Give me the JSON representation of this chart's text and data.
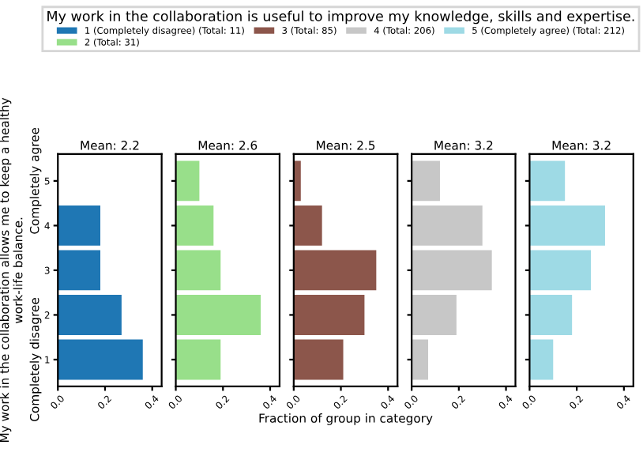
{
  "chart_data": [
    {
      "type": "bar",
      "orientation": "horizontal",
      "title": "Mean: 2.2",
      "ylabel": "My work in the collaboration allows me to keep a healthy work-life balance.",
      "legend_title": "My work in the collaboration is useful to improve my knowledge, skills and expertise.",
      "legend": "top",
      "annotations": [
        "Completely agree",
        "Completely disagree"
      ],
      "categories": [
        "5",
        "4",
        "3",
        "2",
        "1"
      ],
      "xlim": [
        0,
        0.44
      ],
      "xticks": [
        {
          "value": 0,
          "label": "0.0"
        },
        {
          "value": 0.2,
          "label": "0.2"
        },
        {
          "value": 0.4,
          "label": "0.4"
        }
      ],
      "series": [
        {
          "name": "1 (Completely disagree) (Total: 11)",
          "color": "#1f77b4",
          "values": [
            0,
            0.18,
            0.18,
            0.27,
            0.36
          ]
        }
      ]
    },
    {
      "type": "bar",
      "orientation": "horizontal",
      "title": "Mean: 2.6",
      "legend": "top",
      "tick_labels": "x",
      "categories": [
        "5",
        "4",
        "3",
        "2",
        "1"
      ],
      "xlim": [
        0,
        0.44
      ],
      "xticks": [
        {
          "value": 0,
          "label": "0.0"
        },
        {
          "value": 0.2,
          "label": "0.2"
        },
        {
          "value": 0.4,
          "label": "0.4"
        }
      ],
      "series": [
        {
          "name": "2 (Total: 31)",
          "color": "#98df8a",
          "values": [
            0.1,
            0.16,
            0.19,
            0.36,
            0.19
          ]
        }
      ]
    },
    {
      "type": "bar",
      "orientation": "horizontal",
      "title": "Mean: 2.5",
      "xlabel": "Fraction of group in category",
      "legend": "top",
      "tick_labels": "x",
      "categories": [
        "5",
        "4",
        "3",
        "2",
        "1"
      ],
      "xlim": [
        0,
        0.44
      ],
      "xticks": [
        {
          "value": 0,
          "label": "0.0"
        },
        {
          "value": 0.2,
          "label": "0.2"
        },
        {
          "value": 0.4,
          "label": "0.4"
        }
      ],
      "series": [
        {
          "name": "3 (Total: 85)",
          "color": "#8c564b",
          "values": [
            0.03,
            0.12,
            0.35,
            0.3,
            0.21
          ]
        }
      ]
    },
    {
      "type": "bar",
      "orientation": "horizontal",
      "title": "Mean: 3.2",
      "legend": "top",
      "tick_labels": "x",
      "categories": [
        "5",
        "4",
        "3",
        "2",
        "1"
      ],
      "xlim": [
        0,
        0.44
      ],
      "xticks": [
        {
          "value": 0,
          "label": "0.0"
        },
        {
          "value": 0.2,
          "label": "0.2"
        },
        {
          "value": 0.4,
          "label": "0.4"
        }
      ],
      "series": [
        {
          "name": "4 (Total: 206)",
          "color": "#c7c7c7",
          "values": [
            0.12,
            0.3,
            0.34,
            0.19,
            0.07
          ]
        }
      ]
    },
    {
      "type": "bar",
      "orientation": "horizontal",
      "title": "Mean: 3.2",
      "legend": "top",
      "tick_labels": "x",
      "categories": [
        "5",
        "4",
        "3",
        "2",
        "1"
      ],
      "xlim": [
        0,
        0.44
      ],
      "xticks": [
        {
          "value": 0,
          "label": "0.0"
        },
        {
          "value": 0.2,
          "label": "0.2"
        },
        {
          "value": 0.4,
          "label": "0.4"
        }
      ],
      "series": [
        {
          "name": "5 (Completely agree) (Total: 212)",
          "color": "#9edae5",
          "values": [
            0.15,
            0.32,
            0.26,
            0.18,
            0.1
          ]
        }
      ]
    }
  ]
}
